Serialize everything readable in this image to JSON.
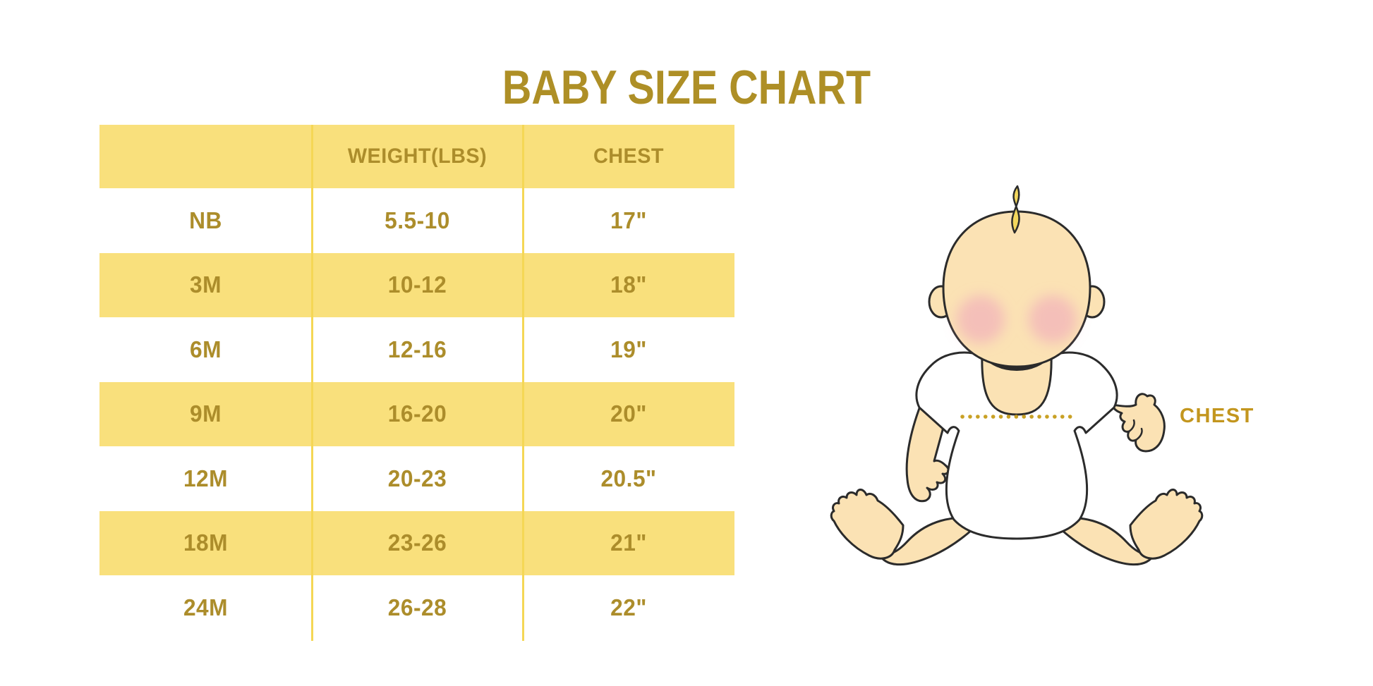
{
  "title": "BABY SIZE CHART",
  "table": {
    "columns": [
      "",
      "WEIGHT(LBS)",
      "CHEST"
    ],
    "rows": [
      {
        "size": "NB",
        "weight": "5.5-10",
        "chest": "17\""
      },
      {
        "size": "3M",
        "weight": "10-12",
        "chest": "18\""
      },
      {
        "size": "6M",
        "weight": "12-16",
        "chest": "19\""
      },
      {
        "size": "9M",
        "weight": "16-20",
        "chest": "20\""
      },
      {
        "size": "12M",
        "weight": "20-23",
        "chest": "20.5\""
      },
      {
        "size": "18M",
        "weight": "23-26",
        "chest": "21\""
      },
      {
        "size": "24M",
        "weight": "26-28",
        "chest": "22\""
      }
    ]
  },
  "figure": {
    "chest_label": "CHEST"
  },
  "colors": {
    "title_gold": "#AE8F26",
    "text_gold": "#AC8D2B",
    "band_yellow": "#F9E07C",
    "line_yellow": "#F5D755",
    "chest_gold": "#C3961E",
    "dot_gold": "#C9A125",
    "skin": "#FBE2B4",
    "cheek": "#F0A9BC",
    "hair": "#F3D75D",
    "outline": "#2B2B2B",
    "shirt": "#FFFFFF"
  },
  "chart_data": {
    "type": "table",
    "title": "BABY SIZE CHART",
    "columns": [
      "",
      "WEIGHT(LBS)",
      "CHEST"
    ],
    "rows": [
      [
        "NB",
        "5.5-10",
        "17\""
      ],
      [
        "3M",
        "10-12",
        "18\""
      ],
      [
        "6M",
        "12-16",
        "19\""
      ],
      [
        "9M",
        "16-20",
        "20\""
      ],
      [
        "12M",
        "20-23",
        "20.5\""
      ],
      [
        "18M",
        "23-26",
        "21\""
      ],
      [
        "24M",
        "26-28",
        "22\""
      ]
    ],
    "banding": "header and alternating rows (3M, 9M, 18M) highlighted yellow",
    "annotation": "CHEST label with dotted measurement line across baby illustration chest"
  }
}
